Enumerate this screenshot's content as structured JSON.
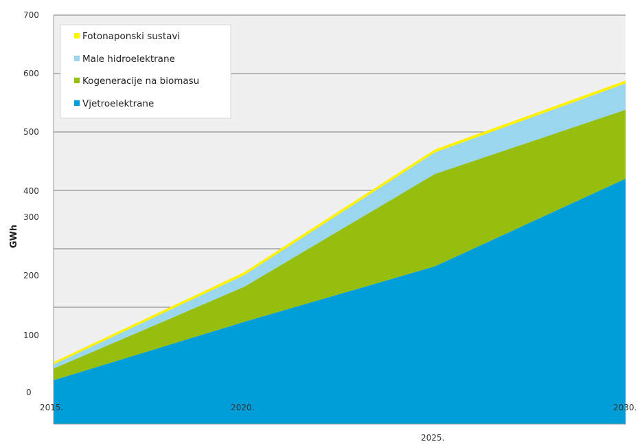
{
  "chart_data": {
    "type": "area",
    "stacked": true,
    "ylabel": "GWh",
    "ylim": [
      0,
      700
    ],
    "y_ticks": [
      "0",
      "100",
      "200",
      "300",
      "400",
      "500",
      "600",
      "700"
    ],
    "x": [
      "2015.",
      "2020.",
      "2025.",
      "2030."
    ],
    "series": [
      {
        "name": "Vjetroelektrane",
        "color": "#009ED8",
        "values": [
          75,
          175,
          270,
          420
        ]
      },
      {
        "name": "Kogeneracije na biomasu",
        "color": "#95BE0E",
        "values": [
          20,
          60,
          158,
          118
        ]
      },
      {
        "name": "Male hidroelektrane",
        "color": "#9AD6EE",
        "values": [
          7,
          20,
          37,
          45
        ]
      },
      {
        "name": "Fotonaponski sustavi",
        "color": "#FFF200",
        "values": [
          4,
          5,
          5,
          5
        ]
      }
    ],
    "grid": true,
    "legend": "top-left",
    "plot_background": "#F0F0F0"
  }
}
